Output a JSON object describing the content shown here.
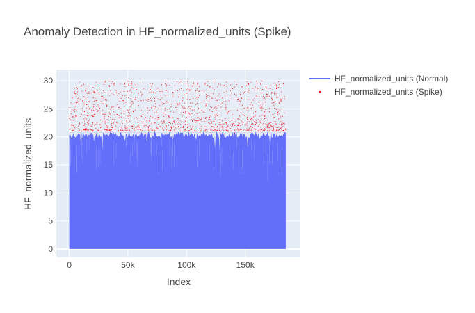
{
  "chart_data": {
    "type": "line",
    "title": "Anomaly Detection in HF_normalized_units (Spike)",
    "xlabel": "Index",
    "ylabel": "HF_normalized_units",
    "xlim": [
      -11000,
      197000
    ],
    "ylim": [
      -1.5,
      32
    ],
    "x_ticks": [
      0,
      50000,
      100000,
      150000
    ],
    "x_tick_labels": [
      "0",
      "50k",
      "100k",
      "150k"
    ],
    "y_ticks": [
      0,
      5,
      10,
      15,
      20,
      25,
      30
    ],
    "y_tick_labels": [
      "0",
      "5",
      "10",
      "15",
      "20",
      "25",
      "30"
    ],
    "x_range_data": [
      0,
      184500
    ],
    "grid": true,
    "legend_position": "top-right",
    "series": [
      {
        "name": "HF_normalized_units (Normal)",
        "kind": "line",
        "color": "#636efa",
        "envelope_min": 0,
        "envelope_max_typical": 20.8,
        "notable_dips": [
          {
            "x": 10000,
            "y": 19.0
          },
          {
            "x": 21000,
            "y": 19.2
          },
          {
            "x": 28000,
            "y": 17.5
          },
          {
            "x": 47000,
            "y": 19.3
          },
          {
            "x": 66000,
            "y": 19.0
          },
          {
            "x": 88000,
            "y": 19.5
          },
          {
            "x": 108000,
            "y": 19.4
          },
          {
            "x": 124000,
            "y": 17.8
          },
          {
            "x": 128000,
            "y": 14.8
          },
          {
            "x": 152000,
            "y": 18.0
          },
          {
            "x": 162000,
            "y": 19.6
          },
          {
            "x": 171000,
            "y": 19.0
          }
        ]
      },
      {
        "name": "HF_normalized_units (Spike)",
        "kind": "scatter",
        "color": "#ff0000",
        "value_range": [
          21,
          30
        ],
        "x_range": [
          0,
          184500
        ]
      }
    ]
  }
}
